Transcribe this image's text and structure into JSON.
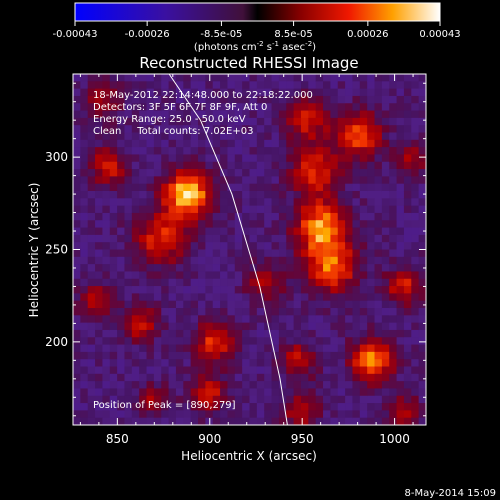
{
  "colorbar": {
    "tick_labels": [
      "-0.00043",
      "-0.00026",
      "-8.5e-05",
      "8.5e-05",
      "0.00026",
      "0.00043"
    ],
    "tick_values": [
      -0.00043,
      -0.00026,
      -8.5e-05,
      8.5e-05,
      0.00026,
      0.00043
    ],
    "range": [
      -0.00043,
      0.00043
    ],
    "units_main": "(photons cm",
    "units_sup1": "-2",
    "units_mid": " s",
    "units_sup2": "-1",
    "units_end": " asec",
    "units_sup3": "-2",
    "units_close": ")"
  },
  "title": "Reconstructed RHESSI Image",
  "info": {
    "line1": "18-May-2012 22:14:48.000 to 22:18:22.000",
    "line2": "Detectors: 3F 5F 6F 7F 8F 9F, Att 0",
    "line3": "Energy Range: 25.0 - 50.0 keV",
    "line4": "Clean     Total counts: 7.02E+03",
    "peak": "Position of Peak = [890,279]"
  },
  "footer": {
    "timestamp": "8-May-2014 15:09"
  },
  "colors": {
    "background": "#000000",
    "axes": "#ffffff",
    "limb": "#ffffff"
  },
  "chart_data": {
    "type": "heatmap",
    "title": "Reconstructed RHESSI Image",
    "xlabel": "Heliocentric X (arcsec)",
    "ylabel": "Heliocentric Y (arcsec)",
    "xlim": [
      826,
      1017
    ],
    "ylim": [
      155,
      345
    ],
    "xticks": [
      850,
      900,
      950,
      1000
    ],
    "xtick_labels": [
      "850",
      "900",
      "950",
      "1000"
    ],
    "yticks": [
      200,
      250,
      300
    ],
    "ytick_labels": [
      "200",
      "250",
      "300"
    ],
    "colormap": "red-temperature with blue negatives",
    "peak_position": [
      890,
      279
    ],
    "sources": [
      {
        "x": 888,
        "y": 280,
        "amp": 1.0,
        "sigma": 9
      },
      {
        "x": 874,
        "y": 256,
        "amp": 0.6,
        "sigma": 10
      },
      {
        "x": 960,
        "y": 262,
        "amp": 0.82,
        "sigma": 10
      },
      {
        "x": 966,
        "y": 240,
        "amp": 0.7,
        "sigma": 10
      },
      {
        "x": 957,
        "y": 292,
        "amp": 0.6,
        "sigma": 9
      },
      {
        "x": 980,
        "y": 312,
        "amp": 0.7,
        "sigma": 9
      },
      {
        "x": 952,
        "y": 320,
        "amp": 0.55,
        "sigma": 8
      },
      {
        "x": 988,
        "y": 190,
        "amp": 0.85,
        "sigma": 8
      },
      {
        "x": 903,
        "y": 200,
        "amp": 0.62,
        "sigma": 8
      },
      {
        "x": 899,
        "y": 172,
        "amp": 0.55,
        "sigma": 7
      },
      {
        "x": 948,
        "y": 190,
        "amp": 0.48,
        "sigma": 7
      },
      {
        "x": 862,
        "y": 210,
        "amp": 0.55,
        "sigma": 7
      },
      {
        "x": 838,
        "y": 222,
        "amp": 0.45,
        "sigma": 7
      },
      {
        "x": 845,
        "y": 295,
        "amp": 0.55,
        "sigma": 7
      },
      {
        "x": 842,
        "y": 330,
        "amp": 0.42,
        "sigma": 7
      },
      {
        "x": 1005,
        "y": 230,
        "amp": 0.55,
        "sigma": 7
      },
      {
        "x": 1010,
        "y": 300,
        "amp": 0.42,
        "sigma": 6
      },
      {
        "x": 1005,
        "y": 162,
        "amp": 0.5,
        "sigma": 6
      },
      {
        "x": 950,
        "y": 162,
        "amp": 0.45,
        "sigma": 7
      },
      {
        "x": 870,
        "y": 168,
        "amp": 0.4,
        "sigma": 6
      },
      {
        "x": 930,
        "y": 232,
        "amp": 0.45,
        "sigma": 7
      }
    ],
    "limb_curve": [
      [
        878,
        345
      ],
      [
        895,
        320
      ],
      [
        912,
        280
      ],
      [
        927,
        230
      ],
      [
        938,
        180
      ],
      [
        942,
        155
      ]
    ]
  }
}
